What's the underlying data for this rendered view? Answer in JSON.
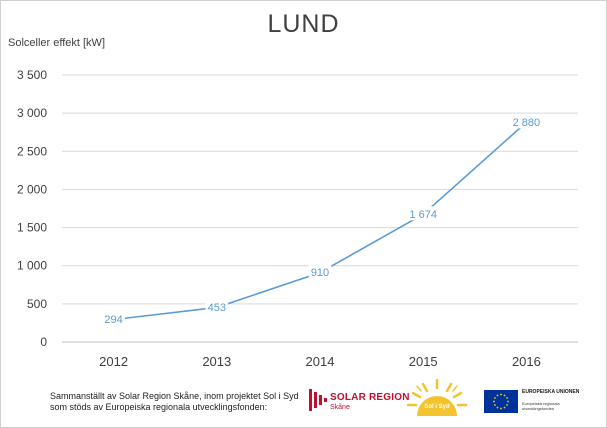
{
  "chart_data": {
    "type": "line",
    "title": "LUND",
    "ylabel": "Solceller effekt [kW]",
    "xlabel": "",
    "categories": [
      "2012",
      "2013",
      "2014",
      "2015",
      "2016"
    ],
    "series": [
      {
        "values": [
          294,
          453,
          910,
          1674,
          2880
        ],
        "data_labels": [
          "294",
          "453",
          "910",
          "1 674",
          "2 880"
        ],
        "color": "#5B9BD5"
      }
    ],
    "ylim": [
      0,
      3500
    ],
    "yticks": [
      0,
      500,
      1000,
      1500,
      2000,
      2500,
      3000,
      3500
    ],
    "ytick_labels": [
      "0",
      "500",
      "1 000",
      "1 500",
      "2 000",
      "2 500",
      "3 000",
      "3 500"
    ],
    "grid": true,
    "legend": "none"
  },
  "footer": {
    "line1": "Sammanställt av Solar Region Skåne, inom projektet Sol i Syd",
    "line2": "som stöds av Europeiska regionala utvecklingsfonden:"
  },
  "logos": {
    "solar_region": {
      "name": "SOLAR REGION",
      "sub": "Skåne",
      "color": "#C0102E"
    },
    "sol_i_syd": {
      "text": "Sol i Syd",
      "color": "#F4C430"
    },
    "eu": {
      "title": "EUROPEISKA UNIONEN",
      "subtitle": "Europeiska regionala utvecklingsfonden",
      "color": "#003399"
    }
  }
}
